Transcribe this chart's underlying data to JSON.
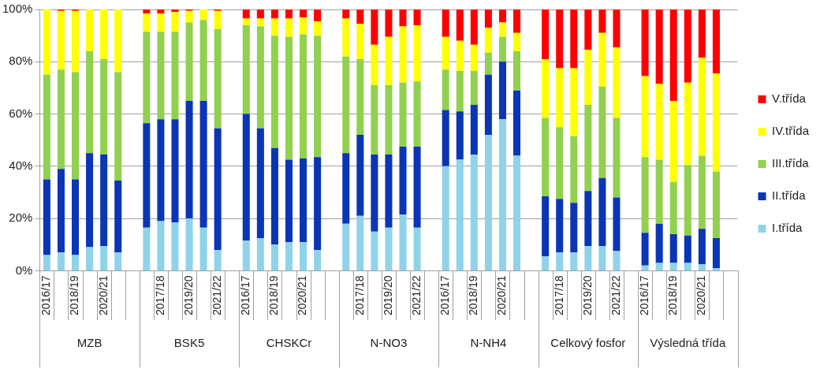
{
  "chart_data": {
    "type": "bar",
    "stacked": true,
    "categories": [
      "2016/17",
      null,
      "2018/19",
      null,
      "2020/21",
      null,
      null,
      null,
      "2017/18",
      null,
      "2019/20",
      null,
      "2021/22",
      null,
      "2016/17",
      null,
      "2018/19",
      null,
      "2020/21",
      null,
      null,
      null,
      "2017/18",
      null,
      "2019/20",
      null,
      "2021/22",
      null,
      "2016/17",
      null,
      "2018/19",
      null,
      "2020/21",
      null,
      null,
      null,
      "2017/18",
      null,
      "2019/20",
      null,
      "2021/22",
      null,
      "2016/17",
      null,
      "2018/19",
      null,
      "2020/21",
      null,
      null
    ],
    "series": [
      {
        "name": "I.třída",
        "color": "#8fd3ea",
        "values": [
          6,
          7,
          6,
          9,
          9.5,
          7,
          null,
          16.5,
          19,
          18.5,
          20,
          16.5,
          8,
          null,
          11.5,
          12.5,
          10,
          11,
          11,
          8,
          null,
          18,
          21,
          15,
          16.5,
          21.5,
          16.5,
          null,
          40,
          42.5,
          44.5,
          52,
          58,
          44,
          null,
          5.5,
          7,
          7,
          9.5,
          9.5,
          7.5,
          null,
          2,
          3,
          3,
          3,
          2.5,
          1,
          null
        ]
      },
      {
        "name": "II.třída",
        "color": "#0a35b5",
        "values": [
          29,
          32,
          29,
          36,
          35,
          27.5,
          null,
          40,
          39,
          39.5,
          45,
          48.5,
          46.5,
          null,
          48.5,
          42,
          37,
          31.5,
          32,
          35.5,
          null,
          27,
          31,
          29.5,
          28,
          26,
          31,
          null,
          21.5,
          18.5,
          19,
          23,
          22,
          25,
          null,
          23,
          20.5,
          19,
          21,
          26,
          20.5,
          null,
          12.5,
          15,
          11,
          10.5,
          13.5,
          11.5,
          null
        ]
      },
      {
        "name": "III.třída",
        "color": "#92d050",
        "values": [
          40,
          38,
          41,
          39,
          36.5,
          41.5,
          null,
          35,
          33.5,
          33.5,
          30,
          31,
          38,
          null,
          34,
          39,
          43,
          47,
          47.5,
          46.5,
          null,
          37,
          29,
          26.5,
          26.5,
          24.5,
          25,
          null,
          15.5,
          15.5,
          13,
          8.5,
          9.5,
          15,
          null,
          30,
          27.5,
          25.5,
          33,
          35,
          30.5,
          null,
          29,
          24.5,
          20,
          27,
          28,
          25.5,
          null
        ]
      },
      {
        "name": "IV.třída",
        "color": "#ffff00",
        "values": [
          25,
          22.5,
          23.5,
          16,
          19,
          24,
          null,
          7,
          7,
          7.5,
          4.5,
          4,
          7,
          null,
          2.5,
          3,
          6.5,
          7,
          6.5,
          5.5,
          null,
          14.5,
          13.5,
          15.5,
          18.5,
          21.5,
          21.5,
          null,
          12.5,
          11.5,
          10,
          9.5,
          5.5,
          7,
          null,
          22.5,
          22.5,
          26,
          21,
          20.5,
          27,
          null,
          31,
          29,
          31,
          31.5,
          37.5,
          37.5,
          null
        ]
      },
      {
        "name": "V.třída",
        "color": "#ff0000",
        "values": [
          0,
          0.5,
          0.5,
          0,
          0,
          0,
          null,
          1.5,
          1.5,
          1,
          0.5,
          0,
          0.5,
          null,
          3.5,
          3.5,
          3.5,
          3.5,
          3,
          4.5,
          null,
          3.5,
          5.5,
          13.5,
          10.5,
          6.5,
          6,
          null,
          10.5,
          12,
          13.5,
          7,
          5,
          9,
          null,
          19,
          22.5,
          22.5,
          15.5,
          9,
          14.5,
          null,
          25.5,
          28.5,
          35,
          28,
          18.5,
          24.5,
          null
        ]
      }
    ],
    "ylim": [
      0,
      100
    ],
    "yticks": [
      {
        "value": 0,
        "label": "0%"
      },
      {
        "value": 20,
        "label": "20%"
      },
      {
        "value": 40,
        "label": "40%"
      },
      {
        "value": 60,
        "label": "60%"
      },
      {
        "value": 80,
        "label": "80%"
      },
      {
        "value": 100,
        "label": "100%"
      }
    ],
    "grid": "y",
    "legend": "right",
    "annotations": [
      "MZB",
      "BSK5",
      "CHSKCr",
      "N-NO3",
      "N-NH4",
      "Celkový fosfor",
      "Výsledná třída"
    ]
  }
}
